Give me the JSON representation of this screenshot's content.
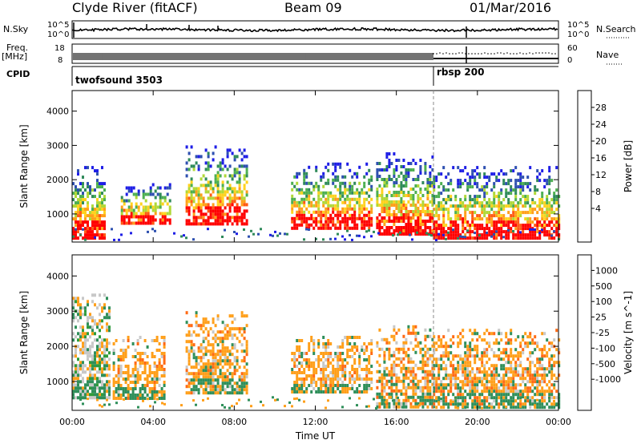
{
  "header": {
    "station": "Clyde River (fitACF)",
    "beam": "Beam 09",
    "date": "01/Mar/2016"
  },
  "strip_labels": {
    "nsky": "N.Sky",
    "nsky_ticks": [
      "10^5",
      "10^0"
    ],
    "nsearch": "N.Search",
    "nsearch_ticks": [
      "10^5",
      "10^0"
    ],
    "freq": "Freq.",
    "freq_unit": "[MHz]",
    "freq_ticks": [
      "18",
      "8"
    ],
    "nave": "Nave",
    "nave_ticks": [
      "60",
      "0"
    ],
    "cpid": "CPID",
    "cpid_a": "twofsound 3503",
    "cpid_b": "rbsp 200"
  },
  "colors": {
    "power": [
      "#1e1ee6",
      "#2e50b0",
      "#2f8a5a",
      "#4caf50",
      "#b0d838",
      "#ffd21e",
      "#ff9f1a",
      "#ff5a14",
      "#ff0000"
    ],
    "velocity": [
      "#2828c8",
      "#2c66aa",
      "#2f8f5a",
      "#2f9c3a",
      "#54c83a",
      "#c8c8c8",
      "#ffd21e",
      "#ff9f1a",
      "#ff6a14",
      "#ff0000"
    ]
  },
  "chart_data": [
    {
      "type": "heatmap",
      "name": "power",
      "xlabel": "Time UT",
      "ylabel": "Slant Range [km]",
      "xlim": [
        0,
        24
      ],
      "ylim": [
        180,
        4600
      ],
      "x_ticks": [
        "00:00",
        "04:00",
        "08:00",
        "12:00",
        "16:00",
        "20:00",
        "00:00"
      ],
      "y_ticks": [
        1000,
        2000,
        3000,
        4000
      ],
      "colorbar_label": "Power [dB]",
      "colorbar_ticks": [
        "28",
        "24",
        "20",
        "16",
        "12",
        "8",
        "4"
      ],
      "regions": [
        {
          "t0": 0.0,
          "t1": 1.6,
          "r0": 300,
          "r1": 2400
        },
        {
          "t0": 2.4,
          "t1": 4.8,
          "r0": 700,
          "r1": 1900
        },
        {
          "t0": 5.6,
          "t1": 8.6,
          "r0": 700,
          "r1": 3000
        },
        {
          "t0": 10.8,
          "t1": 14.8,
          "r0": 600,
          "r1": 2500
        },
        {
          "t0": 15.0,
          "t1": 17.8,
          "r0": 400,
          "r1": 2800
        },
        {
          "t0": 17.8,
          "t1": 24.0,
          "r0": 300,
          "r1": 2400
        }
      ]
    },
    {
      "type": "heatmap",
      "name": "velocity",
      "xlabel": "Time UT",
      "ylabel": "Slant Range [km]",
      "xlim": [
        0,
        24
      ],
      "ylim": [
        180,
        4600
      ],
      "x_ticks": [
        "00:00",
        "04:00",
        "08:00",
        "12:00",
        "16:00",
        "20:00",
        "00:00"
      ],
      "y_ticks": [
        1000,
        2000,
        3000,
        4000
      ],
      "colorbar_label": "Velocity [m s^-1]",
      "colorbar_ticks": [
        "1000",
        "500",
        "100",
        "25",
        "-25",
        "-100",
        "-500",
        "-1000"
      ],
      "regions": [
        {
          "t0": 0.0,
          "t1": 1.8,
          "r0": 500,
          "r1": 3500
        },
        {
          "t0": 2.0,
          "t1": 4.6,
          "r0": 500,
          "r1": 2300
        },
        {
          "t0": 5.6,
          "t1": 8.6,
          "r0": 700,
          "r1": 3000
        },
        {
          "t0": 10.8,
          "t1": 14.8,
          "r0": 700,
          "r1": 2300
        },
        {
          "t0": 15.0,
          "t1": 17.8,
          "r0": 300,
          "r1": 2600
        },
        {
          "t0": 17.8,
          "t1": 24.0,
          "r0": 300,
          "r1": 2500
        }
      ]
    }
  ]
}
